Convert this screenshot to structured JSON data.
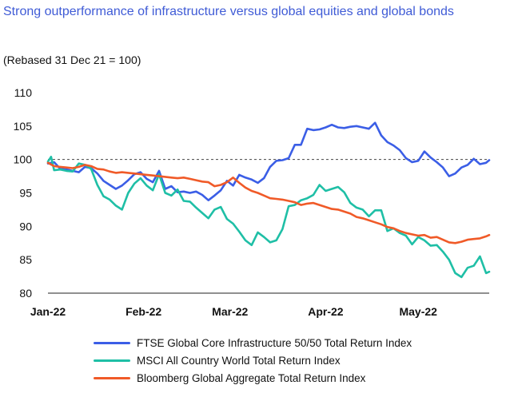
{
  "chart_data": {
    "type": "line",
    "title": "Strong outperformance of infrastructure versus global equities and global bonds",
    "subtitle": "(Rebased 31 Dec 21 = 100)",
    "ylim": [
      80,
      110
    ],
    "yticks": [
      80,
      85,
      90,
      95,
      100,
      105,
      110
    ],
    "xlim": [
      0,
      143
    ],
    "xticks": [
      {
        "label": "Jan-22",
        "x": 0
      },
      {
        "label": "Feb-22",
        "x": 31
      },
      {
        "label": "Mar-22",
        "x": 59
      },
      {
        "label": "Apr-22",
        "x": 90
      },
      {
        "label": "May-22",
        "x": 120
      }
    ],
    "reference_line": {
      "y": 100,
      "style": "dashed"
    },
    "grid": false,
    "legend_position": "bottom",
    "series": [
      {
        "name": "FTSE Global Core Infrastructure 50/50 Total Return Index",
        "color": "#3b5ee6",
        "x": [
          0,
          2,
          4,
          6,
          8,
          10,
          12,
          14,
          16,
          18,
          20,
          22,
          24,
          26,
          28,
          30,
          32,
          34,
          36,
          38,
          40,
          42,
          44,
          46,
          48,
          50,
          52,
          54,
          56,
          58,
          60,
          62,
          64,
          66,
          68,
          70,
          72,
          74,
          76,
          78,
          80,
          82,
          84,
          86,
          88,
          90,
          92,
          94,
          96,
          98,
          100,
          102,
          104,
          106,
          108,
          110,
          112,
          114,
          116,
          118,
          120,
          122,
          124,
          126,
          128,
          130,
          132,
          134,
          136,
          138,
          140,
          142,
          143
        ],
        "y": [
          99.4,
          99.6,
          98.6,
          98.5,
          98.3,
          98.1,
          98.9,
          98.7,
          97.9,
          96.8,
          96.2,
          95.6,
          96.1,
          96.9,
          97.8,
          98.1,
          97.1,
          96.6,
          98.3,
          95.6,
          96.0,
          95.1,
          95.2,
          95.0,
          95.2,
          94.7,
          93.9,
          94.6,
          95.4,
          96.8,
          96.1,
          97.7,
          97.3,
          97.0,
          96.5,
          97.2,
          98.9,
          99.8,
          99.9,
          100.2,
          102.2,
          102.2,
          104.6,
          104.4,
          104.5,
          104.8,
          105.2,
          104.8,
          104.7,
          104.9,
          105.0,
          104.8,
          104.6,
          105.5,
          103.6,
          102.6,
          102.1,
          101.4,
          100.2,
          99.6,
          99.8,
          101.2,
          100.3,
          99.6,
          98.8,
          97.5,
          97.9,
          98.8,
          99.2,
          100.1,
          99.3,
          99.5,
          99.9
        ]
      },
      {
        "name": "MSCI All Country World Total Return Index",
        "color": "#1fbfa6",
        "x": [
          0,
          1,
          2,
          4,
          6,
          8,
          10,
          12,
          14,
          16,
          18,
          20,
          22,
          24,
          26,
          28,
          30,
          32,
          34,
          36,
          38,
          40,
          42,
          44,
          46,
          48,
          50,
          52,
          54,
          56,
          58,
          60,
          62,
          64,
          66,
          68,
          70,
          72,
          74,
          76,
          78,
          80,
          82,
          84,
          86,
          88,
          90,
          92,
          94,
          96,
          98,
          100,
          102,
          104,
          106,
          108,
          110,
          112,
          114,
          116,
          118,
          120,
          122,
          124,
          126,
          128,
          130,
          132,
          134,
          136,
          138,
          140,
          142,
          143
        ],
        "y": [
          99.7,
          100.4,
          98.4,
          98.5,
          98.3,
          98.2,
          99.4,
          99.2,
          98.6,
          96.2,
          94.5,
          94.0,
          93.1,
          92.5,
          95.0,
          96.4,
          97.2,
          96.1,
          95.4,
          97.8,
          95.0,
          94.6,
          95.5,
          93.8,
          93.7,
          92.8,
          92.0,
          91.2,
          92.5,
          92.9,
          91.1,
          90.4,
          89.2,
          87.9,
          87.2,
          89.1,
          88.4,
          87.6,
          87.9,
          89.6,
          93.0,
          93.2,
          93.9,
          94.2,
          94.7,
          96.2,
          95.3,
          95.6,
          95.9,
          95.1,
          93.5,
          92.8,
          92.5,
          91.5,
          92.4,
          92.4,
          89.3,
          89.7,
          89.0,
          88.6,
          87.3,
          88.4,
          87.9,
          87.1,
          87.2,
          86.2,
          85.0,
          83.0,
          82.4,
          83.8,
          84.1,
          85.5,
          83.0,
          83.2
        ]
      },
      {
        "name": "Bloomberg Global Aggregate Total Return Index",
        "color": "#f05a28",
        "x": [
          0,
          2,
          4,
          6,
          8,
          10,
          12,
          14,
          16,
          18,
          20,
          22,
          24,
          26,
          28,
          30,
          32,
          34,
          36,
          38,
          40,
          42,
          44,
          46,
          48,
          50,
          52,
          54,
          56,
          58,
          60,
          62,
          64,
          66,
          68,
          70,
          72,
          74,
          76,
          78,
          80,
          82,
          84,
          86,
          88,
          90,
          92,
          94,
          96,
          98,
          100,
          102,
          104,
          106,
          108,
          110,
          112,
          114,
          116,
          118,
          120,
          122,
          124,
          126,
          128,
          130,
          132,
          134,
          136,
          138,
          140,
          142,
          143
        ],
        "y": [
          99.5,
          99.0,
          98.9,
          98.8,
          98.7,
          98.9,
          99.2,
          99.0,
          98.6,
          98.5,
          98.2,
          98.0,
          98.1,
          98.0,
          97.9,
          97.8,
          97.7,
          97.6,
          97.5,
          97.4,
          97.3,
          97.2,
          97.3,
          97.1,
          96.9,
          96.7,
          96.6,
          96.0,
          96.2,
          96.6,
          97.3,
          96.5,
          95.8,
          95.3,
          95.0,
          94.6,
          94.2,
          94.1,
          94.0,
          93.8,
          93.6,
          93.2,
          93.4,
          93.5,
          93.2,
          92.9,
          92.6,
          92.5,
          92.2,
          91.9,
          91.4,
          91.2,
          90.9,
          90.6,
          90.3,
          89.9,
          89.7,
          89.3,
          89.0,
          88.8,
          88.6,
          88.7,
          88.3,
          88.4,
          88.0,
          87.6,
          87.5,
          87.7,
          88.0,
          88.1,
          88.2,
          88.5,
          88.7
        ]
      }
    ]
  }
}
